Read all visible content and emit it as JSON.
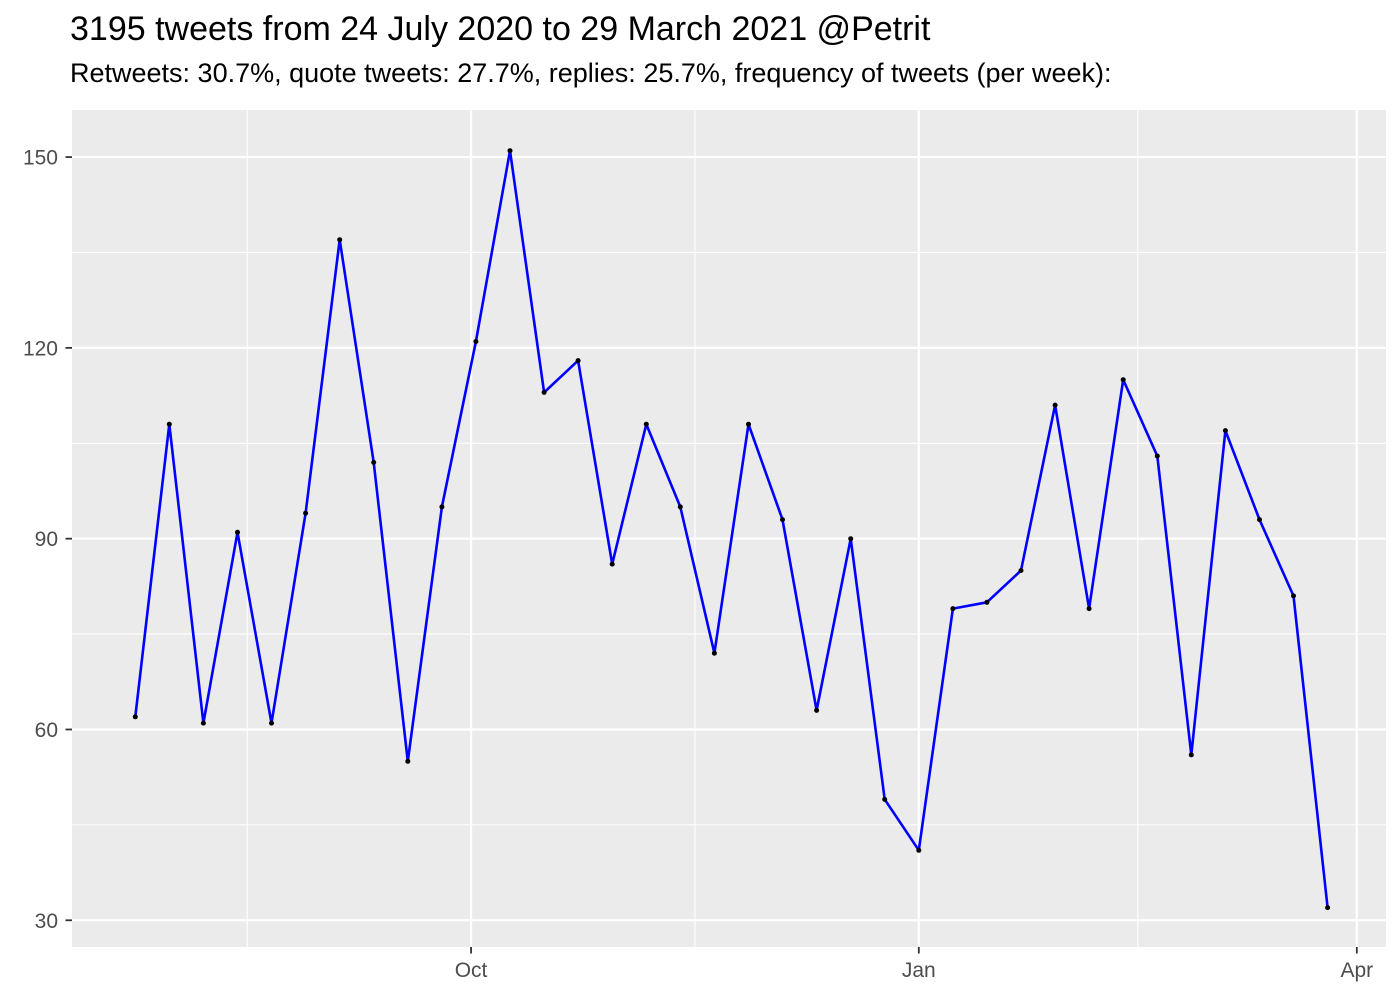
{
  "header": {
    "title": "3195 tweets from 24 July 2020 to 29 March 2021 @Petrit",
    "subtitle": "Retweets: 30.7%, quote tweets: 27.7%, replies: 25.7%, frequency of tweets (per week):"
  },
  "chart_data": {
    "type": "line",
    "title": "3195 tweets from 24 July 2020 to 29 March 2021 @Petrit",
    "subtitle": "Retweets: 30.7%, quote tweets: 27.7%, replies: 25.7%, frequency of tweets (per week):",
    "xlabel": "",
    "ylabel": "",
    "x": [
      "2020-07-24",
      "2020-07-31",
      "2020-08-07",
      "2020-08-14",
      "2020-08-21",
      "2020-08-28",
      "2020-09-04",
      "2020-09-11",
      "2020-09-18",
      "2020-09-25",
      "2020-10-02",
      "2020-10-09",
      "2020-10-16",
      "2020-10-23",
      "2020-10-30",
      "2020-11-06",
      "2020-11-13",
      "2020-11-20",
      "2020-11-27",
      "2020-12-04",
      "2020-12-11",
      "2020-12-18",
      "2020-12-25",
      "2021-01-01",
      "2021-01-08",
      "2021-01-15",
      "2021-01-22",
      "2021-01-29",
      "2021-02-05",
      "2021-02-12",
      "2021-02-19",
      "2021-02-26",
      "2021-03-05",
      "2021-03-12",
      "2021-03-19",
      "2021-03-26"
    ],
    "values": [
      62,
      108,
      61,
      91,
      61,
      94,
      137,
      102,
      55,
      95,
      121,
      151,
      113,
      118,
      86,
      108,
      95,
      72,
      108,
      93,
      63,
      90,
      49,
      41,
      79,
      80,
      85,
      111,
      79,
      115,
      103,
      56,
      107,
      93,
      81,
      32
    ],
    "series_name": "tweets per week",
    "y_ticks": [
      30,
      60,
      90,
      120,
      150
    ],
    "y_minor_ticks": [
      45,
      75,
      105,
      135
    ],
    "x_ticks": [
      {
        "label": "Oct",
        "date": "2020-10-01"
      },
      {
        "label": "Jan",
        "date": "2021-01-01"
      },
      {
        "label": "Apr",
        "date": "2021-04-01"
      }
    ],
    "x_minor_dates": [
      "2020-08-16",
      "2020-11-16",
      "2021-02-15"
    ],
    "xlim": [
      "2020-07-11",
      "2021-04-07"
    ],
    "ylim": [
      25.8,
      157.4
    ],
    "grid": true,
    "legend": "none",
    "colors": {
      "line": "#0000FF",
      "point": "#000000",
      "panel_background": "#EBEBEB",
      "gridline": "#FFFFFF",
      "axis_text": "#4D4D4D",
      "tick_mark": "#333333",
      "title_text": "#000000"
    }
  }
}
